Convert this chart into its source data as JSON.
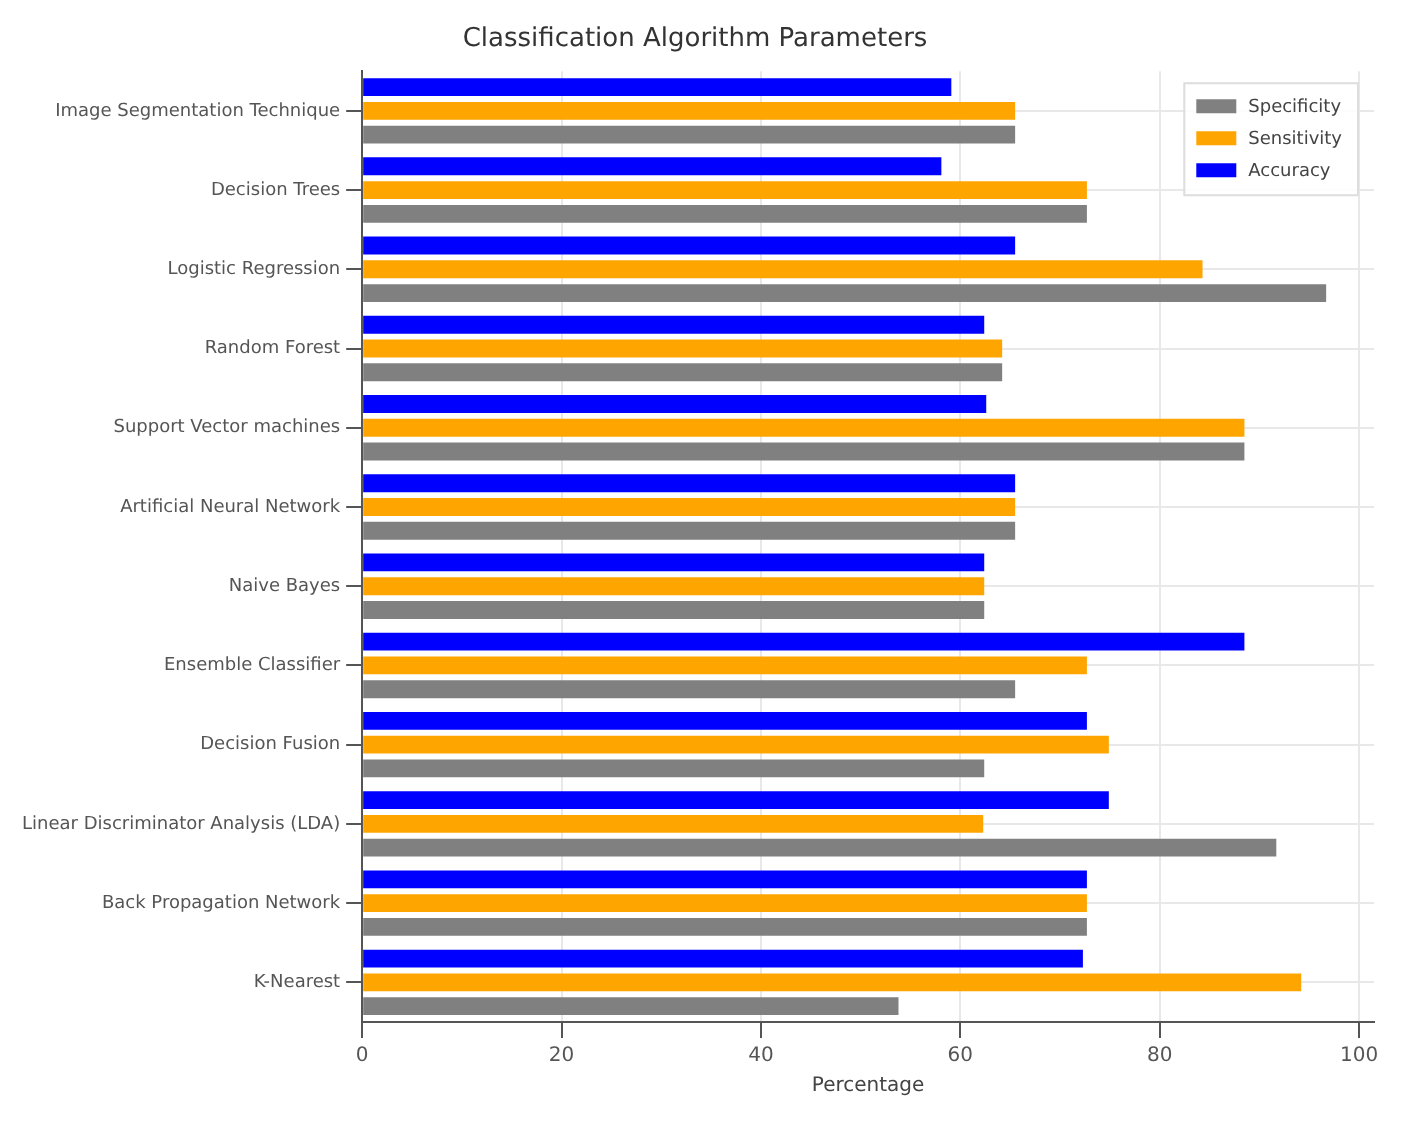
{
  "chart_data": {
    "type": "bar",
    "orientation": "horizontal",
    "title": "Classification Algorithm Parameters",
    "xlabel": "Percentage",
    "categories": [
      "Image Segmentation Technique",
      "Decision Trees",
      "Logistic Regression",
      "Random Forest",
      "Support Vector machines",
      "Artificial Neural Network",
      "Naive Bayes",
      "Ensemble Classifier",
      "Decision Fusion",
      "Linear Discriminator Analysis (LDA)",
      "Back Propagation Network",
      "K-Nearest"
    ],
    "series": [
      {
        "name": "Accuracy",
        "color": "#0000ff",
        "values": [
          59.1,
          58.1,
          65.5,
          62.4,
          62.6,
          65.5,
          62.4,
          88.5,
          72.7,
          74.9,
          72.7,
          72.3
        ]
      },
      {
        "name": "Sensitivity",
        "color": "#ffa500",
        "values": [
          65.5,
          72.7,
          84.3,
          64.2,
          88.5,
          65.5,
          62.4,
          72.7,
          74.9,
          62.3,
          72.7,
          94.2
        ]
      },
      {
        "name": "Specificity",
        "color": "#808080",
        "values": [
          65.5,
          72.7,
          96.7,
          64.2,
          88.5,
          65.5,
          62.4,
          65.5,
          62.4,
          91.7,
          72.7,
          53.8
        ]
      }
    ],
    "xlim": [
      0,
      101.5
    ],
    "xticks": [
      0,
      20,
      40,
      60,
      80,
      100
    ],
    "grid": true,
    "legend": "top right"
  }
}
